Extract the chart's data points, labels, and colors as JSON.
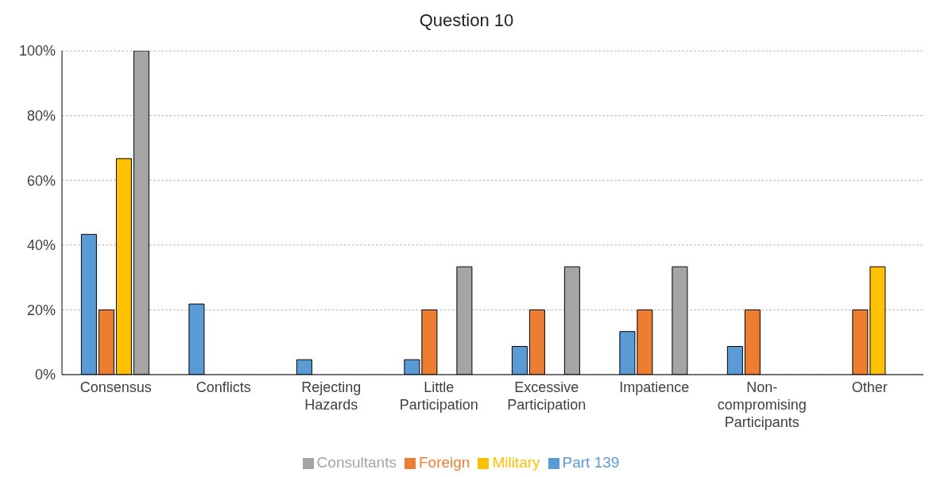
{
  "chart_data": {
    "type": "bar",
    "title": "Question 10",
    "categories": [
      "Consensus",
      "Conflicts",
      "Rejecting Hazards",
      "Little Participation",
      "Excessive Participation",
      "Impatience",
      "Non-compromising Participants",
      "Other"
    ],
    "series": [
      {
        "name": "Part 139",
        "color": "#5b9bd5",
        "values": [
          43.3,
          21.8,
          4.6,
          4.6,
          8.7,
          13.3,
          8.7,
          0
        ]
      },
      {
        "name": "Foreign",
        "color": "#ed7d31",
        "values": [
          20,
          0,
          0,
          20,
          20,
          20,
          20,
          20
        ]
      },
      {
        "name": "Military",
        "color": "#ffc000",
        "values": [
          66.7,
          0,
          0,
          0,
          0,
          0,
          0,
          33.3
        ]
      },
      {
        "name": "Consultants",
        "color": "#a5a5a5",
        "values": [
          100,
          0,
          0,
          33.3,
          33.3,
          33.3,
          0,
          0
        ]
      }
    ],
    "ylim": [
      0,
      100
    ],
    "yticks": [
      {
        "value": 0,
        "label": "0%"
      },
      {
        "value": 20,
        "label": "20%"
      },
      {
        "value": 40,
        "label": "40%"
      },
      {
        "value": 60,
        "label": "60%"
      },
      {
        "value": 80,
        "label": "80%"
      },
      {
        "value": 100,
        "label": "100%"
      }
    ],
    "grid": "y",
    "legend": "bottom"
  }
}
